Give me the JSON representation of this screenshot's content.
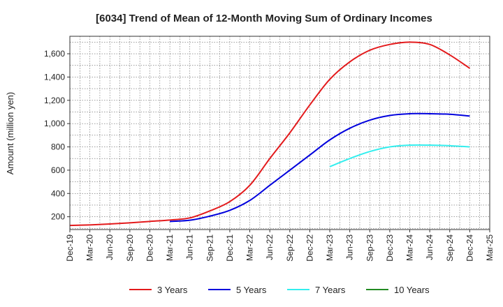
{
  "chart_data": {
    "type": "line",
    "title": "[6034]  Trend of Mean of 12-Month Moving Sum of Ordinary Incomes",
    "xlabel": "",
    "ylabel": "Amount (million yen)",
    "ylim": [
      90,
      1750
    ],
    "yticks": [
      200,
      400,
      600,
      800,
      1000,
      1200,
      1400,
      1600
    ],
    "ytick_labels": [
      "200",
      "400",
      "600",
      "800",
      "1,000",
      "1,200",
      "1,400",
      "1,600"
    ],
    "categories": [
      "Dec-19",
      "Mar-20",
      "Jun-20",
      "Sep-20",
      "Dec-20",
      "Mar-21",
      "Jun-21",
      "Sep-21",
      "Dec-21",
      "Mar-22",
      "Jun-22",
      "Sep-22",
      "Dec-22",
      "Mar-23",
      "Jun-23",
      "Sep-23",
      "Dec-23",
      "Mar-24",
      "Jun-24",
      "Sep-24",
      "Dec-24",
      "Mar-25"
    ],
    "grid": true,
    "legend_position": "bottom",
    "series": [
      {
        "name": "3 Years",
        "color": "#e31a1c",
        "values": [
          125,
          130,
          138,
          148,
          160,
          172,
          190,
          250,
          330,
          470,
          700,
          920,
          1160,
          1380,
          1530,
          1630,
          1680,
          1700,
          1680,
          1590,
          1475,
          null
        ]
      },
      {
        "name": "5 Years",
        "color": "#0000dd",
        "values": [
          null,
          null,
          null,
          null,
          null,
          160,
          170,
          205,
          255,
          340,
          470,
          600,
          730,
          860,
          960,
          1030,
          1070,
          1085,
          1085,
          1080,
          1065,
          null
        ]
      },
      {
        "name": "7 Years",
        "color": "#33eeee",
        "values": [
          null,
          null,
          null,
          null,
          null,
          null,
          null,
          null,
          null,
          null,
          null,
          null,
          null,
          630,
          700,
          760,
          800,
          815,
          815,
          810,
          800,
          null
        ]
      },
      {
        "name": "10 Years",
        "color": "#228b22",
        "values": [
          null,
          null,
          null,
          null,
          null,
          null,
          null,
          null,
          null,
          null,
          null,
          null,
          null,
          null,
          null,
          null,
          null,
          null,
          null,
          null,
          null,
          null
        ]
      }
    ]
  }
}
